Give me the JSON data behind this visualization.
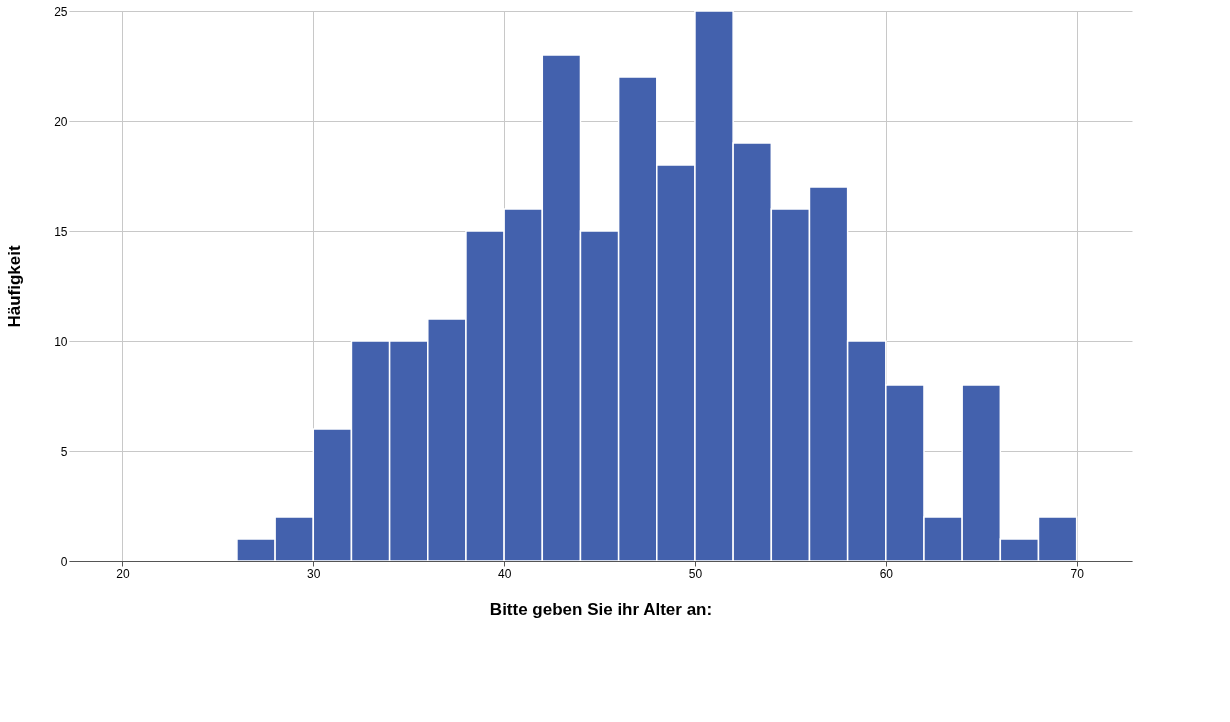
{
  "chart_data": {
    "type": "histogram",
    "xlabel": "Bitte geben Sie ihr Alter an:",
    "ylabel": "Häufigkeit",
    "bins": [
      26,
      28,
      30,
      32,
      34,
      36,
      38,
      40,
      42,
      44,
      46,
      48,
      50,
      52,
      54,
      56,
      58,
      60,
      62,
      64,
      66,
      68,
      70
    ],
    "values": [
      1,
      2,
      6,
      10,
      10,
      11,
      15,
      16,
      23,
      15,
      22,
      18,
      25,
      19,
      16,
      17,
      10,
      8,
      2,
      8,
      1,
      2
    ],
    "color": "#4361ad",
    "xlim": [
      17.2,
      72.9
    ],
    "xticks": [
      20,
      30,
      40,
      50,
      60,
      70
    ],
    "ylim": [
      0,
      25
    ],
    "yticks": [
      0,
      5,
      10,
      15,
      20,
      25
    ],
    "grid": true
  }
}
